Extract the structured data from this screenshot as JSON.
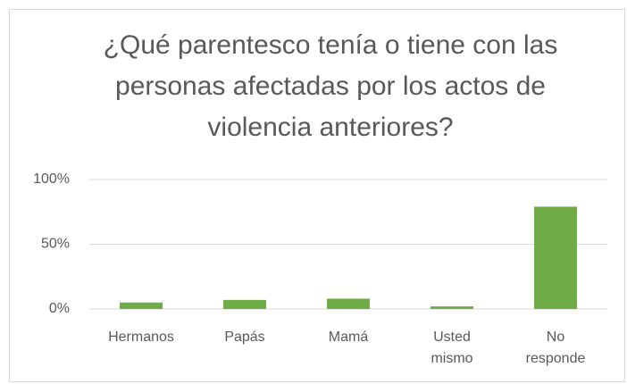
{
  "chart_data": {
    "type": "bar",
    "title": "¿Qué parentesco tenía o tiene con las personas afectadas por los actos de violencia anteriores?",
    "categories": [
      "Hermanos",
      "Papás",
      "Mamá",
      "Usted mismo",
      "No responde"
    ],
    "values": [
      5,
      7,
      8,
      2,
      79
    ],
    "color": "#70ad47",
    "ylim": [
      0,
      100
    ],
    "yticks": [
      {
        "value": 0,
        "label": "0%"
      },
      {
        "value": 50,
        "label": "50%"
      },
      {
        "value": 100,
        "label": "100%"
      }
    ],
    "grid": true
  }
}
